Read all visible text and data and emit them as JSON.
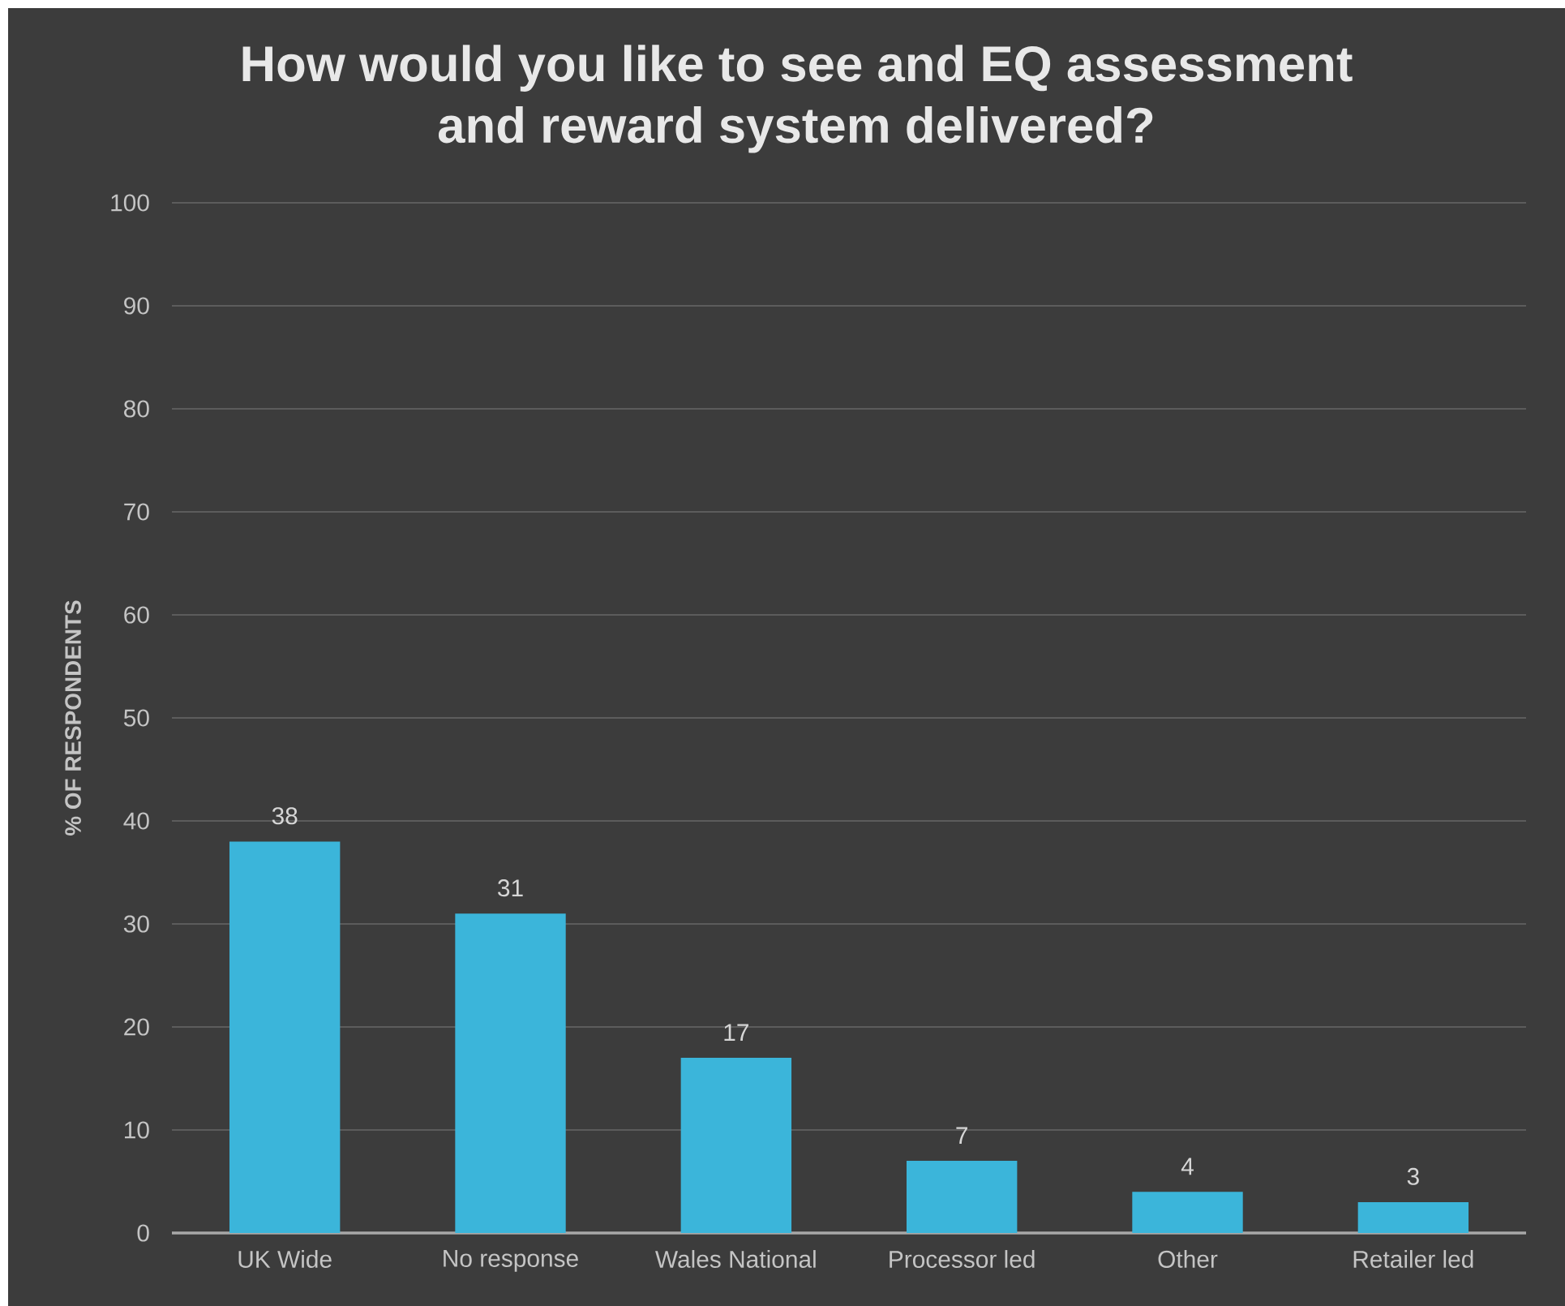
{
  "chart_data": {
    "type": "bar",
    "title": "How would you like to see and EQ assessment and reward system delivered?",
    "ylabel": "% OF RESPONDENTS",
    "categories": [
      "UK Wide",
      "No response",
      "Wales National",
      "Processor led",
      "Other",
      "Retailer led"
    ],
    "values": [
      38,
      31,
      17,
      7,
      4,
      3
    ],
    "color": "#3bb5da",
    "ylim": [
      0,
      100
    ],
    "yticks": [
      0,
      10,
      20,
      30,
      40,
      50,
      60,
      70,
      80,
      90,
      100
    ],
    "grid": "y",
    "data_labels": true
  }
}
